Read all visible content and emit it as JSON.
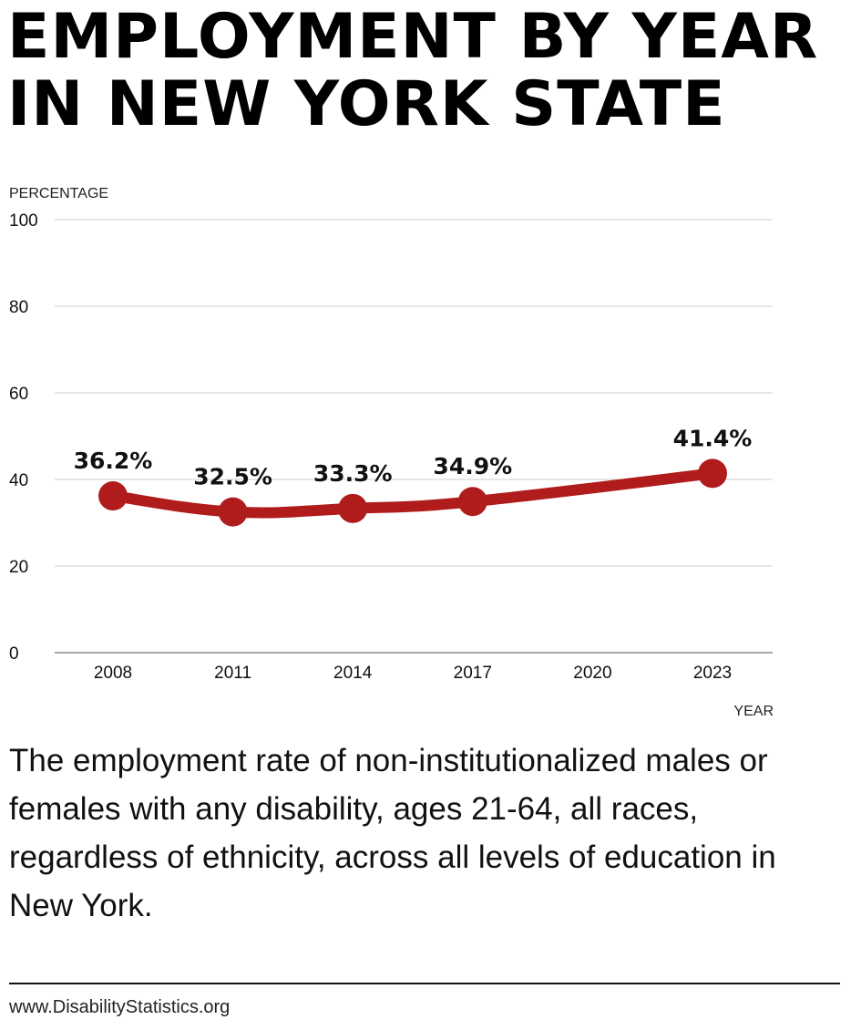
{
  "title": {
    "line1": "EMPLOYMENT BY YEAR",
    "line2": "IN NEW YORK STATE"
  },
  "chart_data": {
    "type": "line",
    "ylabel": "PERCENTAGE",
    "xlabel": "YEAR",
    "ylim": [
      0,
      100
    ],
    "yticks": [
      0,
      20,
      40,
      60,
      80,
      100
    ],
    "xticks": [
      2008,
      2011,
      2014,
      2017,
      2020,
      2023
    ],
    "xlim": [
      2008,
      2023
    ],
    "grid": true,
    "x": [
      2008,
      2011,
      2014,
      2017,
      2023
    ],
    "values": [
      36.2,
      32.5,
      33.3,
      34.9,
      41.4
    ],
    "data_labels": [
      "36.2%",
      "32.5%",
      "33.3%",
      "34.9%",
      "41.4%"
    ],
    "color": "#b01c1c"
  },
  "description": "The employment rate of non-institutionalized males or females with any disability, ages 21-64, all races, regardless of ethnicity, across all levels of education in New York.",
  "footer": "www.DisabilityStatistics.org"
}
